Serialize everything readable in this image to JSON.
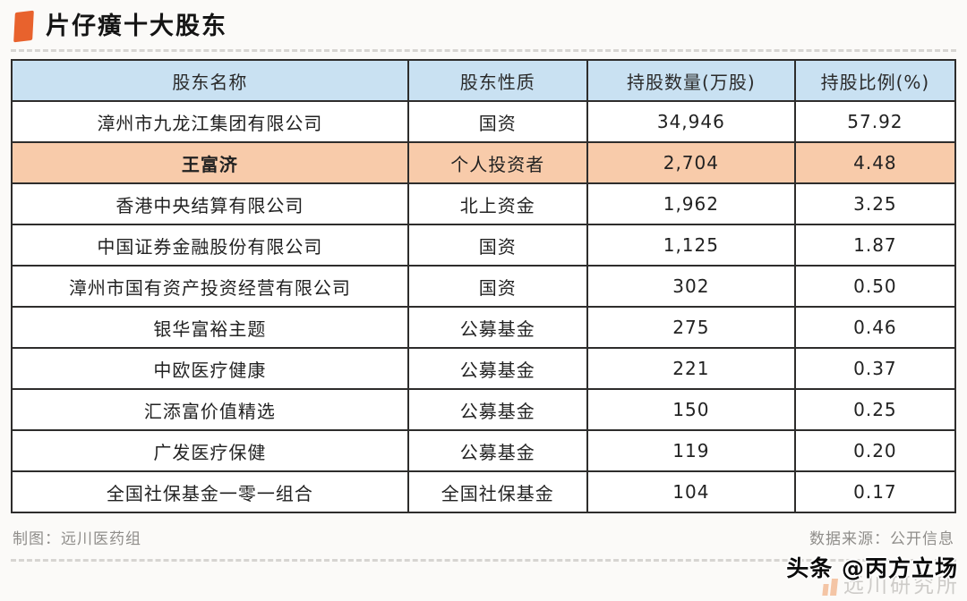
{
  "page": {
    "title": "片仔癀十大股东",
    "credit_left": "制图：远川医药组",
    "credit_right": "数据来源：公开信息",
    "watermark_overlay": "头条 @丙方立场",
    "watermark_logo_text": "远川研究所"
  },
  "colors": {
    "accent_orange": "#E8622D",
    "header_blue": "#C9E1F2",
    "highlight_row_orange": "#F8CBAA",
    "table_border": "#2E2D2C"
  },
  "chart_data": {
    "type": "table",
    "title": "片仔癀十大股东",
    "columns": [
      "股东名称",
      "股东性质",
      "持股数量(万股)",
      "持股比例(%)"
    ],
    "rows": [
      [
        "漳州市九龙江集团有限公司",
        "国资",
        "34,946",
        "57.92"
      ],
      [
        "王富济",
        "个人投资者",
        "2,704",
        "4.48"
      ],
      [
        "香港中央结算有限公司",
        "北上资金",
        "1,962",
        "3.25"
      ],
      [
        "中国证券金融股份有限公司",
        "国资",
        "1,125",
        "1.87"
      ],
      [
        "漳州市国有资产投资经营有限公司",
        "国资",
        "302",
        "0.50"
      ],
      [
        "银华富裕主题",
        "公募基金",
        "275",
        "0.46"
      ],
      [
        "中欧医疗健康",
        "公募基金",
        "221",
        "0.37"
      ],
      [
        "汇添富价值精选",
        "公募基金",
        "150",
        "0.25"
      ],
      [
        "广发医疗保健",
        "公募基金",
        "119",
        "0.20"
      ],
      [
        "全国社保基金一零一组合",
        "全国社保基金",
        "104",
        "0.17"
      ]
    ],
    "highlighted_row_index": 1,
    "layout": {
      "grid": true,
      "header_fill": "light-blue",
      "highlight_fill": "light-orange"
    }
  }
}
